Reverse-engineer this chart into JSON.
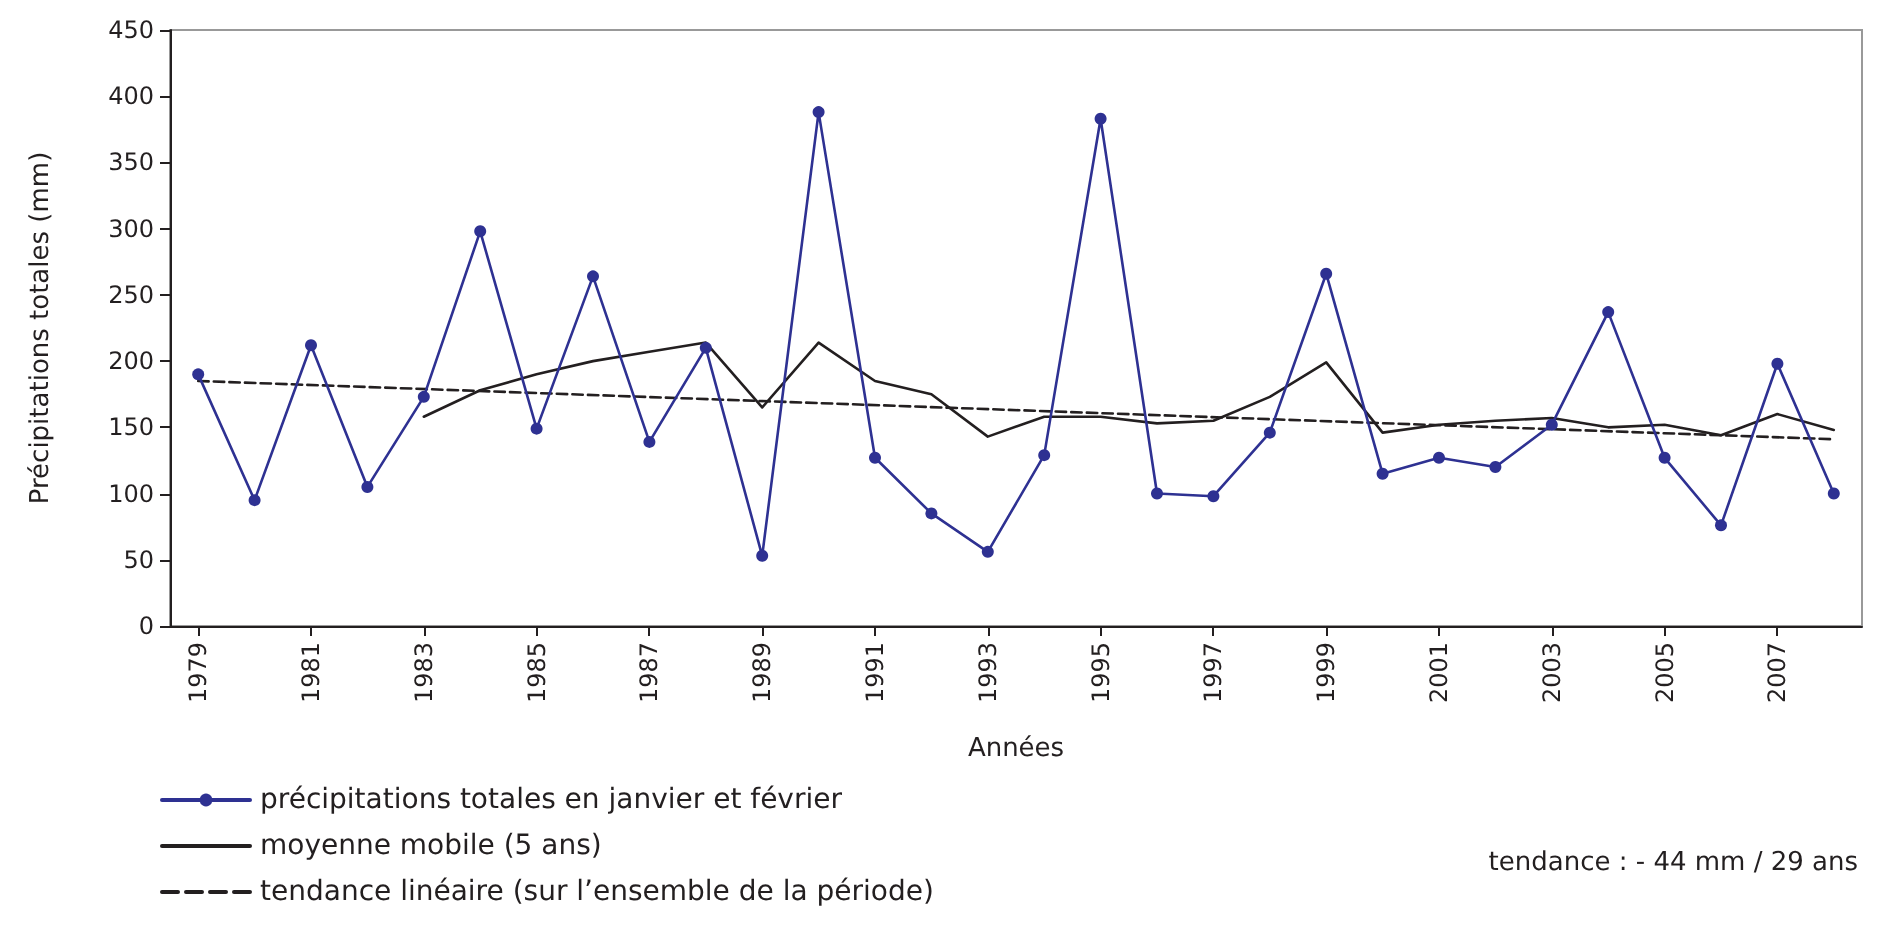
{
  "chart_data": {
    "type": "line",
    "xlabel": "Années",
    "ylabel": "Précipitations totales (mm)",
    "x": [
      1979,
      1980,
      1981,
      1982,
      1983,
      1984,
      1985,
      1986,
      1987,
      1988,
      1989,
      1990,
      1991,
      1992,
      1993,
      1994,
      1995,
      1996,
      1997,
      1998,
      1999,
      2000,
      2001,
      2002,
      2003,
      2004,
      2005,
      2006,
      2007,
      2008
    ],
    "series": [
      {
        "name": "précipitations totales en janvier et février",
        "color": "#2e3192",
        "marker": "circle",
        "line_style": "solid",
        "values": [
          190,
          95,
          212,
          105,
          173,
          298,
          149,
          264,
          139,
          210,
          53,
          388,
          127,
          85,
          56,
          129,
          383,
          100,
          98,
          146,
          266,
          115,
          127,
          120,
          152,
          237,
          127,
          76,
          198,
          100
        ]
      },
      {
        "name": "moyenne mobile (5 ans)",
        "color": "#231f20",
        "marker": "none",
        "line_style": "solid",
        "x": [
          1983,
          1984,
          1985,
          1986,
          1987,
          1988,
          1989,
          1990,
          1991,
          1992,
          1993,
          1994,
          1995,
          1996,
          1997,
          1998,
          1999,
          2000,
          2001,
          2002,
          2003,
          2004,
          2005,
          2006,
          2007,
          2008
        ],
        "values": [
          158,
          178,
          190,
          200,
          207,
          214,
          165,
          214,
          185,
          175,
          143,
          158,
          158,
          153,
          155,
          173,
          199,
          146,
          152,
          155,
          157,
          150,
          152,
          144,
          160,
          148
        ]
      },
      {
        "name": "tendance linéaire (sur l’ensemble de la période)",
        "color": "#231f20",
        "marker": "none",
        "line_style": "dashed",
        "x": [
          1979,
          2008
        ],
        "values": [
          185,
          141
        ]
      }
    ],
    "xlim": [
      1978.5,
      2008.5
    ],
    "xticks": [
      1979,
      1981,
      1983,
      1985,
      1987,
      1989,
      1991,
      1993,
      1995,
      1997,
      1999,
      2001,
      2003,
      2005,
      2007
    ],
    "ylim": [
      0,
      450
    ],
    "yticks": [
      0,
      50,
      100,
      150,
      200,
      250,
      300,
      350,
      400,
      450
    ],
    "grid": false,
    "legend": "bottom left",
    "annotations": [
      "tendance : - 44 mm / 29 ans"
    ]
  }
}
